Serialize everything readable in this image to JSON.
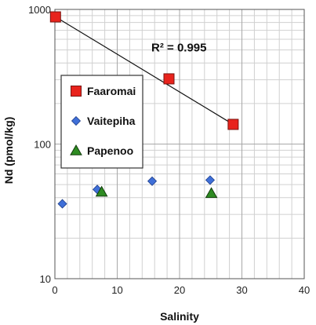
{
  "chart_data": {
    "type": "scatter",
    "xlabel": "Salinity",
    "ylabel": "Nd (pmol/kg)",
    "xlim": [
      0,
      40
    ],
    "ylim": [
      10,
      1000
    ],
    "yscale": "log",
    "x_ticks": [
      0,
      10,
      20,
      30,
      40
    ],
    "y_ticks": [
      10,
      100,
      1000
    ],
    "grid": true,
    "legend_position": "left-middle",
    "series": [
      {
        "name": "Faaromai",
        "marker": "square",
        "color": "#e8231c",
        "points": [
          {
            "x": 0.1,
            "y": 880
          },
          {
            "x": 18.3,
            "y": 305
          },
          {
            "x": 28.6,
            "y": 140
          }
        ]
      },
      {
        "name": "Vaitepiha",
        "marker": "diamond",
        "color": "#3f6fd8",
        "points": [
          {
            "x": 1.2,
            "y": 36
          },
          {
            "x": 6.8,
            "y": 46
          },
          {
            "x": 15.6,
            "y": 53
          },
          {
            "x": 24.9,
            "y": 54
          }
        ]
      },
      {
        "name": "Papenoo",
        "marker": "triangle",
        "color": "#2e8b22",
        "points": [
          {
            "x": 7.5,
            "y": 44
          },
          {
            "x": 25.1,
            "y": 43
          }
        ]
      }
    ],
    "trendline": {
      "series": "Faaromai",
      "from": {
        "x": 0.1,
        "y": 880
      },
      "to": {
        "x": 28.6,
        "y": 140
      }
    },
    "annotation": {
      "text": "R² = 0.995",
      "x": 19.5,
      "y": 520
    }
  }
}
